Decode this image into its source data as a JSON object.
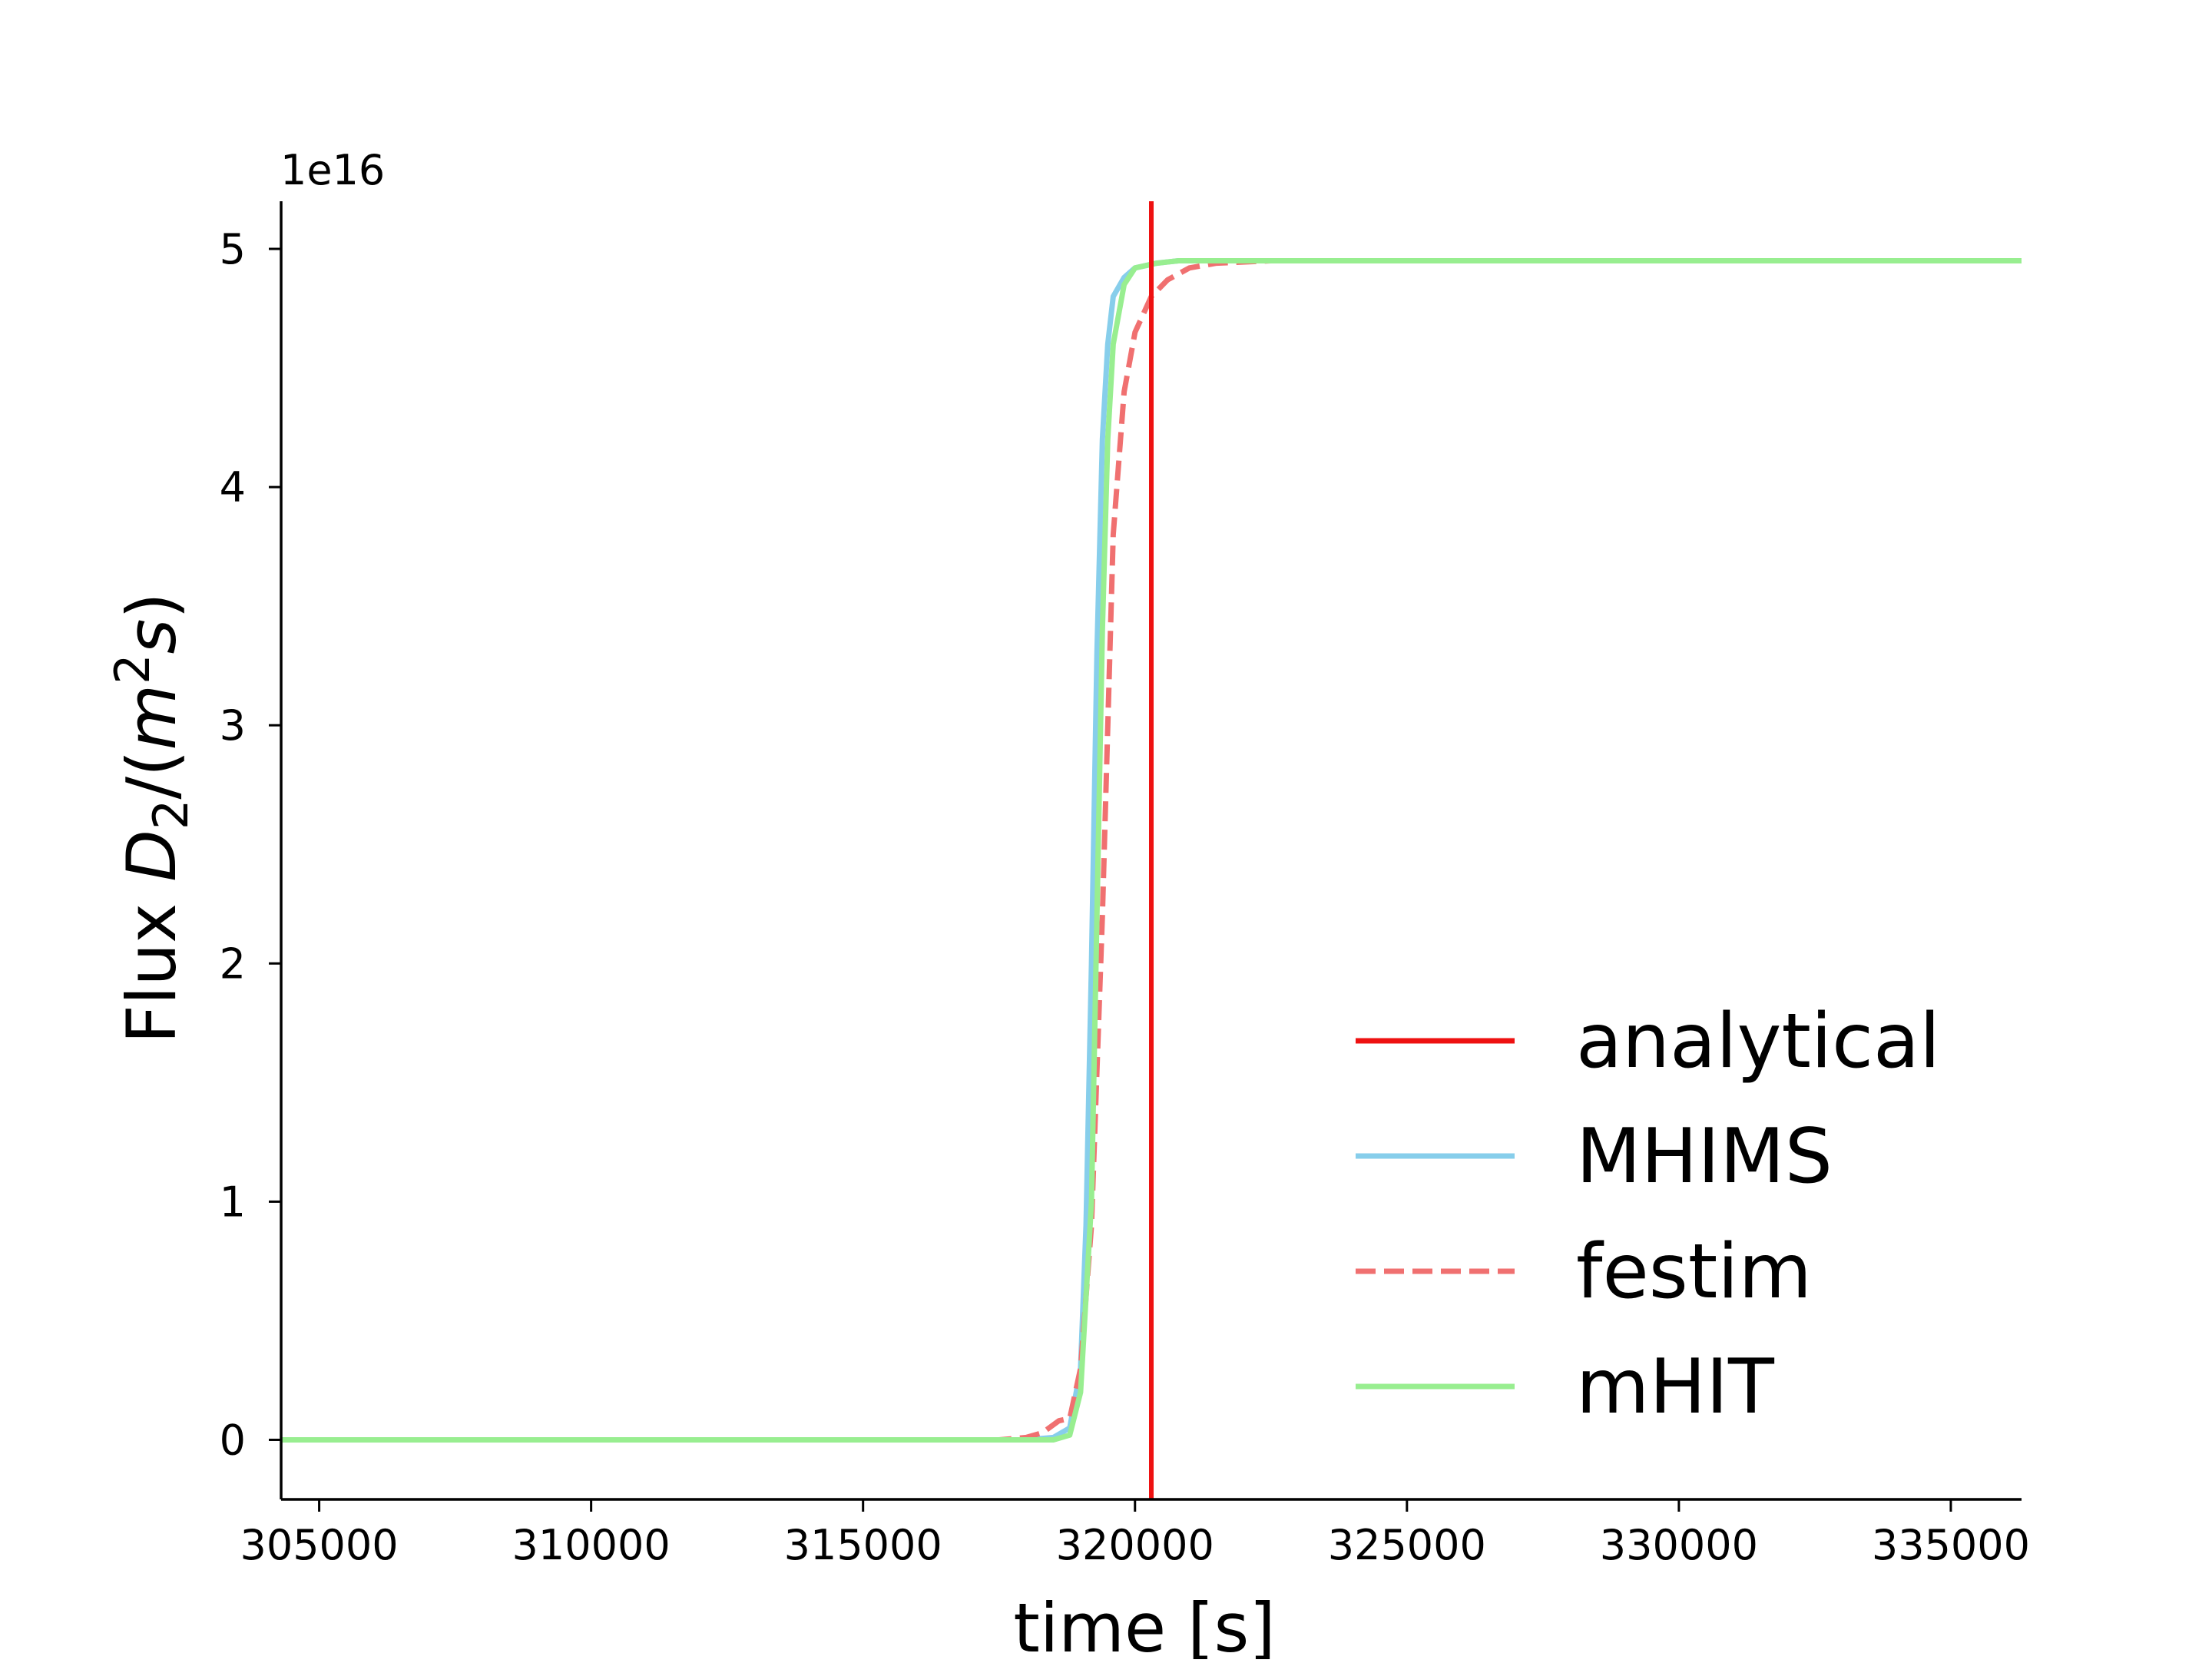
{
  "chart_data": {
    "type": "line",
    "xlabel": "time [s]",
    "ylabel": "Flux D2/(m2s)",
    "ylabel_parts": {
      "prefix": "Flux ",
      "var": "D",
      "sub": "2",
      "mid": "/(",
      "var2": "m",
      "sup": "2",
      "var3": "s",
      "suffix": ")"
    },
    "y_offset_label": "1e16",
    "y_scale_multiplier": 1e+16,
    "xlim": [
      304300,
      336300
    ],
    "ylim": [
      -0.25,
      5.2
    ],
    "x_ticks": [
      305000,
      310000,
      315000,
      320000,
      325000,
      330000,
      335000
    ],
    "x_tick_labels": [
      "305000",
      "310000",
      "315000",
      "320000",
      "325000",
      "330000",
      "335000"
    ],
    "y_ticks": [
      0,
      1,
      2,
      3,
      4,
      5
    ],
    "y_tick_labels": [
      "0",
      "1",
      "2",
      "3",
      "4",
      "5"
    ],
    "grid": false,
    "legend_position": "lower-right",
    "series": [
      {
        "name": "analytical",
        "style": "vline",
        "color": "#ee1111",
        "x": [
          320300,
          320300
        ],
        "y": [
          -0.25,
          5.2
        ]
      },
      {
        "name": "MHIMS",
        "style": "solid",
        "color": "#87ceeb",
        "x": [
          304300,
          318000,
          318500,
          318800,
          319000,
          319100,
          319200,
          319300,
          319400,
          319500,
          319600,
          319800,
          320000,
          320400,
          320800,
          321500,
          323000,
          336300
        ],
        "y": [
          0,
          0,
          0.01,
          0.05,
          0.3,
          0.9,
          2.0,
          3.3,
          4.2,
          4.6,
          4.8,
          4.88,
          4.92,
          4.94,
          4.95,
          4.95,
          4.95,
          4.95
        ]
      },
      {
        "name": "festim",
        "style": "dashed",
        "color": "#f07070",
        "x": [
          304300,
          317500,
          318000,
          318300,
          318600,
          318800,
          319000,
          319200,
          319400,
          319600,
          319800,
          320000,
          320300,
          320600,
          321000,
          321500,
          322500,
          336300
        ],
        "y": [
          0,
          0,
          0.01,
          0.03,
          0.08,
          0.09,
          0.3,
          0.9,
          2.2,
          3.8,
          4.4,
          4.65,
          4.8,
          4.87,
          4.92,
          4.94,
          4.95,
          4.95
        ]
      },
      {
        "name": "mHIT",
        "style": "solid",
        "color": "#98ee90",
        "x": [
          304300,
          318500,
          318800,
          319000,
          319200,
          319300,
          319400,
          319500,
          319600,
          319800,
          320000,
          320400,
          320800,
          321500,
          336300
        ],
        "y": [
          0,
          0,
          0.02,
          0.2,
          1.0,
          2.2,
          3.4,
          4.2,
          4.6,
          4.85,
          4.92,
          4.94,
          4.95,
          4.95,
          4.95
        ]
      }
    ]
  }
}
